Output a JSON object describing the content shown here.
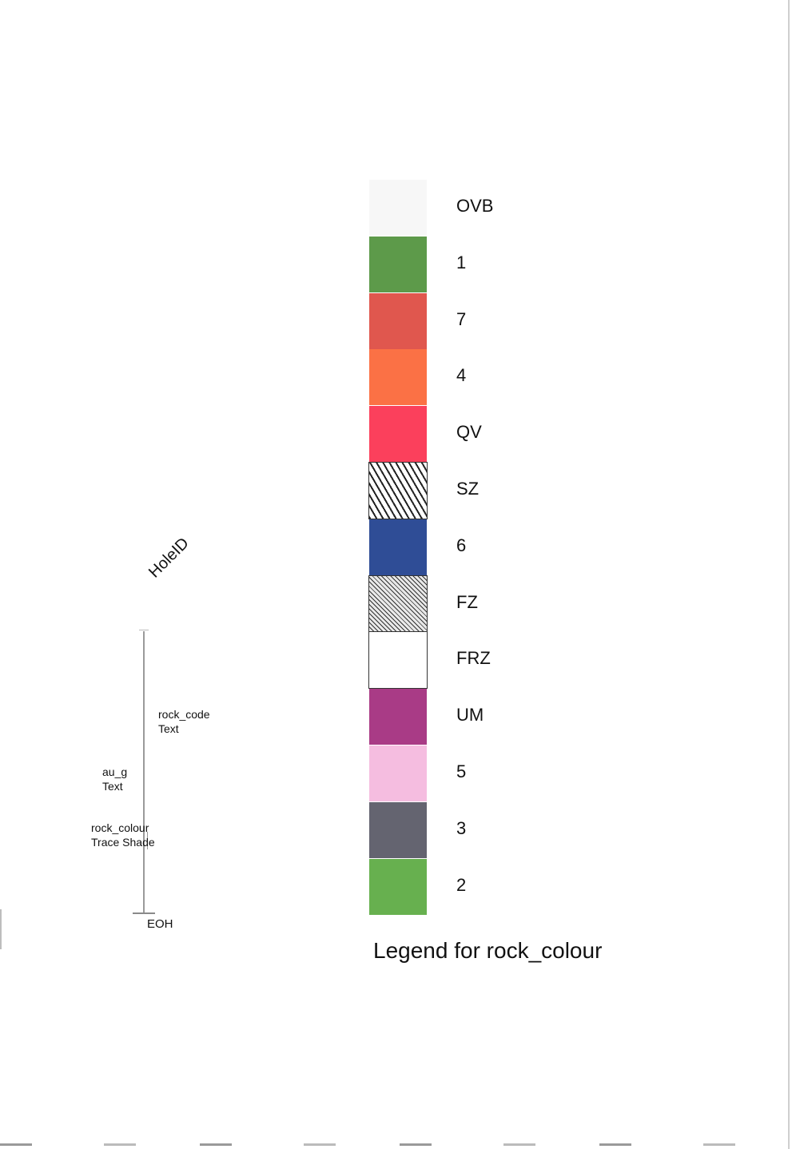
{
  "strip_log": {
    "hole_id_label": "HoleID",
    "rock_code_field": "rock_code",
    "rock_code_type": "Text",
    "au_field": "au_g",
    "au_type": "Text",
    "rock_colour_field": "rock_colour",
    "rock_colour_type": "Trace Shade",
    "end_label": "EOH"
  },
  "legend": {
    "title": "Legend for rock_colour",
    "items": [
      {
        "label": "OVB",
        "color": "#f7f7f7",
        "pattern": "none"
      },
      {
        "label": "1",
        "color": "#5d9a4a",
        "pattern": "none"
      },
      {
        "label": "7",
        "color": "#e0574e",
        "pattern": "none"
      },
      {
        "label": "4",
        "color": "#fb7145",
        "pattern": "none"
      },
      {
        "label": "QV",
        "color": "#fb405c",
        "pattern": "none"
      },
      {
        "label": "SZ",
        "color": "#ffffff",
        "pattern": "dashes"
      },
      {
        "label": "6",
        "color": "#2f4d96",
        "pattern": "none"
      },
      {
        "label": "FZ",
        "color": "#ffffff",
        "pattern": "hatch"
      },
      {
        "label": "FRZ",
        "color": "#ffffff",
        "pattern": "cells"
      },
      {
        "label": "UM",
        "color": "#a93b86",
        "pattern": "none"
      },
      {
        "label": "5",
        "color": "#f5bde0",
        "pattern": "none"
      },
      {
        "label": "3",
        "color": "#646470",
        "pattern": "none"
      },
      {
        "label": "2",
        "color": "#67b04f",
        "pattern": "none"
      }
    ]
  }
}
